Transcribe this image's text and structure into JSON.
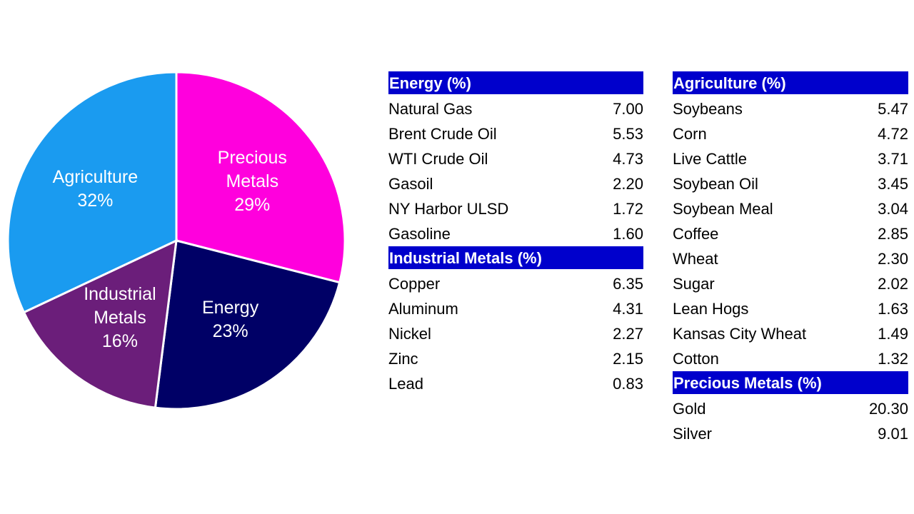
{
  "chart_data": {
    "type": "pie",
    "categories": [
      "Precious Metals",
      "Energy",
      "Industrial Metals",
      "Agriculture"
    ],
    "values": [
      29,
      23,
      16,
      32
    ],
    "value_labels": [
      "29%",
      "23%",
      "16%",
      "32%"
    ],
    "colors": [
      "#ff00dd",
      "#000066",
      "#6b1e7a",
      "#1a9bf0"
    ]
  },
  "tables": [
    {
      "title": "Energy (%)",
      "rows": [
        [
          "Natural Gas",
          "7.00"
        ],
        [
          "Brent Crude Oil",
          "5.53"
        ],
        [
          "WTI Crude Oil",
          "4.73"
        ],
        [
          "Gasoil",
          "2.20"
        ],
        [
          "NY Harbor ULSD",
          "1.72"
        ],
        [
          "Gasoline",
          "1.60"
        ]
      ]
    },
    {
      "title": "Industrial Metals (%)",
      "rows": [
        [
          "Copper",
          "6.35"
        ],
        [
          "Aluminum",
          "4.31"
        ],
        [
          "Nickel",
          "2.27"
        ],
        [
          "Zinc",
          "2.15"
        ],
        [
          "Lead",
          "0.83"
        ]
      ]
    },
    {
      "title": "Agriculture (%)",
      "rows": [
        [
          "Soybeans",
          "5.47"
        ],
        [
          "Corn",
          "4.72"
        ],
        [
          "Live Cattle",
          "3.71"
        ],
        [
          "Soybean Oil",
          "3.45"
        ],
        [
          "Soybean Meal",
          "3.04"
        ],
        [
          "Coffee",
          "2.85"
        ],
        [
          "Wheat",
          "2.30"
        ],
        [
          "Sugar",
          "2.02"
        ],
        [
          "Lean Hogs",
          "1.63"
        ],
        [
          "Kansas City Wheat",
          "1.49"
        ],
        [
          "Cotton",
          "1.32"
        ]
      ]
    },
    {
      "title": "Precious Metals (%)",
      "rows": [
        [
          "Gold",
          "20.30"
        ],
        [
          "Silver",
          "9.01"
        ]
      ]
    }
  ]
}
